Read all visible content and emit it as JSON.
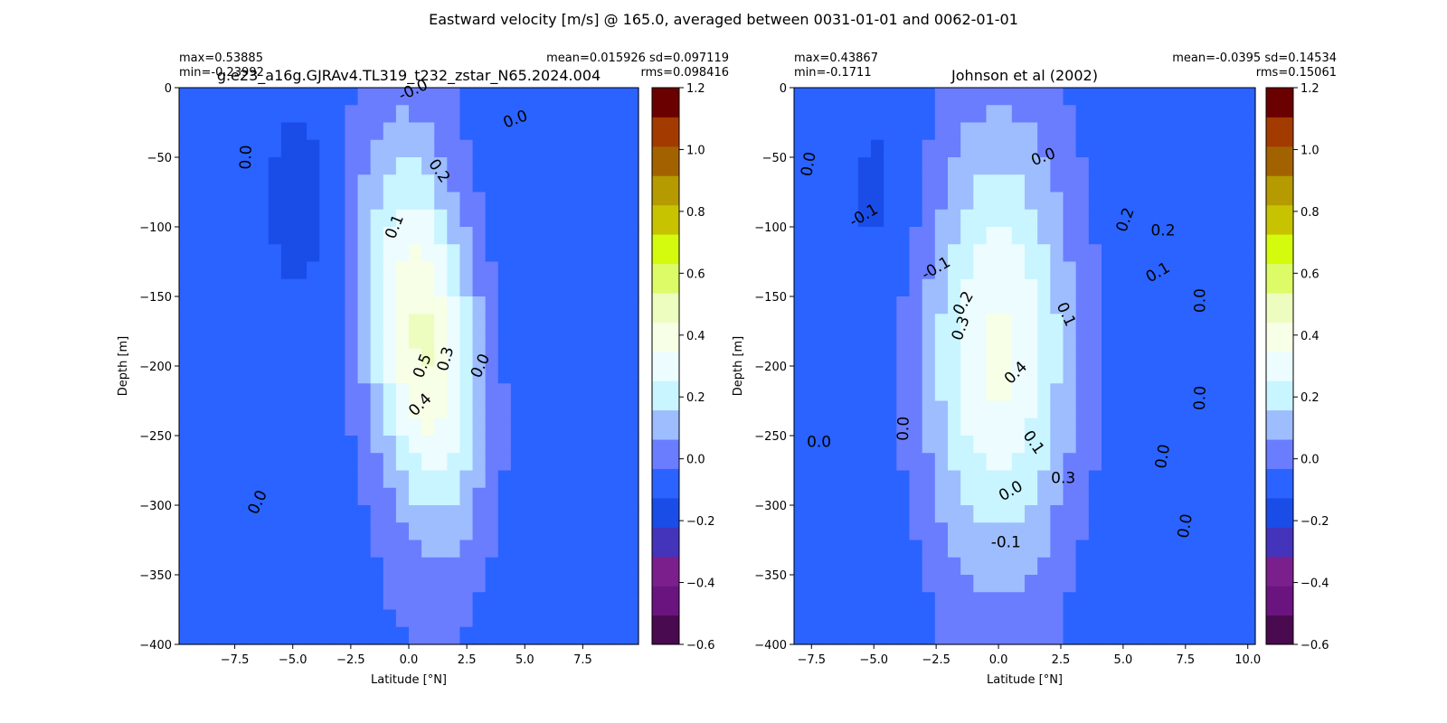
{
  "suptitle": "Eastward velocity [m/s] @ 165.0, averaged between 0031-01-01 and 0062-01-01",
  "colorbar": {
    "levels": [
      -0.6,
      -0.5,
      -0.4,
      -0.3,
      -0.2,
      -0.1,
      0.0,
      0.1,
      0.2,
      0.3,
      0.4,
      0.5,
      0.6,
      0.7,
      0.8,
      0.9,
      1.0,
      1.1,
      1.2
    ],
    "colors": [
      "#4a0a4f",
      "#6a1480",
      "#7b1f8c",
      "#4433bb",
      "#1a4de8",
      "#2a63ff",
      "#6a7dff",
      "#9dbdff",
      "#c8f5ff",
      "#ecfcff",
      "#f7ffe6",
      "#edfdc0",
      "#dcfb66",
      "#d4fa0d",
      "#c7c300",
      "#b59a00",
      "#a36200",
      "#a33b00",
      "#6b0000"
    ],
    "tick_labels": [
      "−0.6",
      "−0.4",
      "−0.2",
      "0.0",
      "0.2",
      "0.4",
      "0.6",
      "0.8",
      "1.0",
      "1.2"
    ],
    "tick_values": [
      -0.6,
      -0.4,
      -0.2,
      0.0,
      0.2,
      0.4,
      0.6,
      0.8,
      1.0,
      1.2
    ]
  },
  "chart_data": [
    {
      "type": "heatmap",
      "title": "g.e23_a16g.GJRAv4.TL319_t232_zstar_N65.2024.004",
      "stats_left": [
        "max=0.53885",
        "min=-0.23992"
      ],
      "stats_right": [
        "mean=0.015926 sd=0.097119",
        "rms=0.098416"
      ],
      "xlabel": "Latitude [°N]",
      "ylabel": "Depth [m]",
      "xlim": [
        -9.9,
        9.9
      ],
      "ylim": [
        -400,
        0
      ],
      "xticks": [
        -7.5,
        -5.0,
        -2.5,
        0.0,
        2.5,
        5.0,
        7.5
      ],
      "xtick_labels": [
        "−7.5",
        "−5.0",
        "−2.5",
        "0.0",
        "2.5",
        "5.0",
        "7.5"
      ],
      "yticks": [
        0,
        -50,
        -100,
        -150,
        -200,
        -250,
        -300,
        -350,
        -400
      ],
      "ytick_labels": [
        "0",
        "−50",
        "−100",
        "−150",
        "−200",
        "−250",
        "−300",
        "−350",
        "−400"
      ],
      "jet": {
        "lat0": 0.6,
        "depth0": -180,
        "max": 0.53885,
        "spread_lat": 1.7,
        "spread_depth": 95,
        "tilt": -0.006
      },
      "contour_labels": [
        {
          "text": "0.0",
          "lat": -7.0,
          "depth": -50,
          "rot": -88
        },
        {
          "text": "-0.0",
          "lat": 0.2,
          "depth": -2,
          "rot": -25
        },
        {
          "text": "0.0",
          "lat": 4.6,
          "depth": -23,
          "rot": -20
        },
        {
          "text": "0.2",
          "lat": 1.3,
          "depth": -60,
          "rot": 55
        },
        {
          "text": "0.1",
          "lat": -0.6,
          "depth": -100,
          "rot": -68
        },
        {
          "text": "0.5",
          "lat": 0.6,
          "depth": -200,
          "rot": -68
        },
        {
          "text": "0.3",
          "lat": 1.6,
          "depth": -195,
          "rot": -75
        },
        {
          "text": "0.4",
          "lat": 0.5,
          "depth": -228,
          "rot": -45
        },
        {
          "text": "0.0",
          "lat": 3.1,
          "depth": -200,
          "rot": -65
        },
        {
          "text": "0.0",
          "lat": -6.5,
          "depth": -298,
          "rot": -65
        }
      ]
    },
    {
      "type": "heatmap",
      "title": "Johnson et al (2002)",
      "stats_left": [
        "max=0.43867",
        "min=-0.1711"
      ],
      "stats_right": [
        "mean=-0.0395 sd=0.14534",
        "rms=0.15061"
      ],
      "xlabel": "Latitude [°N]",
      "ylabel": "Depth [m]",
      "xlim": [
        -8.2,
        10.3
      ],
      "ylim": [
        -400,
        0
      ],
      "xticks": [
        -7.5,
        -5.0,
        -2.5,
        0.0,
        2.5,
        5.0,
        7.5,
        10.0
      ],
      "xtick_labels": [
        "−7.5",
        "−5.0",
        "−2.5",
        "0.0",
        "2.5",
        "5.0",
        "7.5",
        "10.0"
      ],
      "yticks": [
        0,
        -50,
        -100,
        -150,
        -200,
        -250,
        -300,
        -350,
        -400
      ],
      "ytick_labels": [
        "0",
        "−50",
        "−100",
        "−150",
        "−200",
        "−250",
        "−300",
        "−350",
        "−400"
      ],
      "jet": {
        "lat0": 0.0,
        "depth0": -190,
        "max": 0.43867,
        "spread_lat": 2.2,
        "spread_depth": 110,
        "tilt": 0.0
      },
      "contour_labels": [
        {
          "text": "0.0",
          "lat": -7.6,
          "depth": -55,
          "rot": -80
        },
        {
          "text": "-0.1",
          "lat": -5.4,
          "depth": -92,
          "rot": -30
        },
        {
          "text": "-0.1",
          "lat": -2.5,
          "depth": -130,
          "rot": -30
        },
        {
          "text": "0.0",
          "lat": 1.8,
          "depth": -50,
          "rot": -20
        },
        {
          "text": "0.2",
          "lat": 5.1,
          "depth": -95,
          "rot": -70
        },
        {
          "text": "0.2",
          "lat": 6.6,
          "depth": -103,
          "rot": 0
        },
        {
          "text": "0.1",
          "lat": 6.4,
          "depth": -133,
          "rot": -30
        },
        {
          "text": "0.0",
          "lat": 8.1,
          "depth": -153,
          "rot": -90
        },
        {
          "text": "0.2",
          "lat": -1.4,
          "depth": -155,
          "rot": -60
        },
        {
          "text": "0.3",
          "lat": -1.5,
          "depth": -173,
          "rot": -70
        },
        {
          "text": "0.1",
          "lat": 2.7,
          "depth": -163,
          "rot": 65
        },
        {
          "text": "0.4",
          "lat": 0.7,
          "depth": -205,
          "rot": -45
        },
        {
          "text": "0.0",
          "lat": -3.8,
          "depth": -245,
          "rot": -88
        },
        {
          "text": "0.0",
          "lat": -7.2,
          "depth": -255,
          "rot": 0
        },
        {
          "text": "0.1",
          "lat": 1.4,
          "depth": -255,
          "rot": 55
        },
        {
          "text": "0.3",
          "lat": 2.6,
          "depth": -281,
          "rot": 0
        },
        {
          "text": "0.0",
          "lat": 0.5,
          "depth": -290,
          "rot": -30
        },
        {
          "text": "0.0",
          "lat": 6.6,
          "depth": -265,
          "rot": -80
        },
        {
          "text": "0.0",
          "lat": 8.1,
          "depth": -223,
          "rot": -88
        },
        {
          "text": "0.0",
          "lat": 7.5,
          "depth": -315,
          "rot": -80
        },
        {
          "text": "-0.1",
          "lat": 0.3,
          "depth": -327,
          "rot": 0
        }
      ]
    }
  ]
}
